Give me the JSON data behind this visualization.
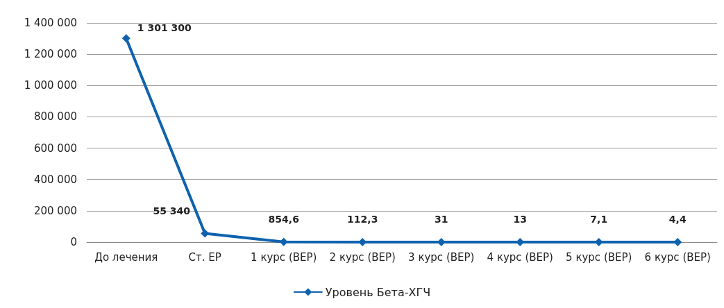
{
  "chart_data": {
    "type": "line",
    "categories": [
      "До лечения",
      "Ст. ЕР",
      "1 курс (ВЕР)",
      "2 курс (ВЕР)",
      "3 курс (ВЕР)",
      "4 курс (ВЕР)",
      "5 курс (ВЕР)",
      "6 курс (ВЕР)"
    ],
    "series": [
      {
        "name": "Уровень Бета-ХГЧ",
        "color": "#0e62ae",
        "values": [
          1301300,
          55340,
          854.6,
          112.3,
          31,
          13,
          7.1,
          4.4
        ],
        "value_labels": [
          "1 301 300",
          "55 340",
          "854,6",
          "112,3",
          "31",
          "13",
          "7,1",
          "4,4"
        ]
      }
    ],
    "ylim": [
      0,
      1400000
    ],
    "yticks": [
      0,
      {
        "value": 200000,
        "label": "200 000"
      },
      {
        "value": 400000,
        "label": "400 000"
      },
      {
        "value": 600000,
        "label": "600 000"
      },
      {
        "value": 800000,
        "label": "800 000"
      },
      {
        "value": 1000000,
        "label": "1 000 000"
      },
      {
        "value": 1200000,
        "label": "1 200 000"
      },
      {
        "value": 1400000,
        "label": "1 400 000"
      }
    ],
    "grid": "y",
    "legend": "bottom",
    "marker": "diamond",
    "line_style": "solid"
  }
}
